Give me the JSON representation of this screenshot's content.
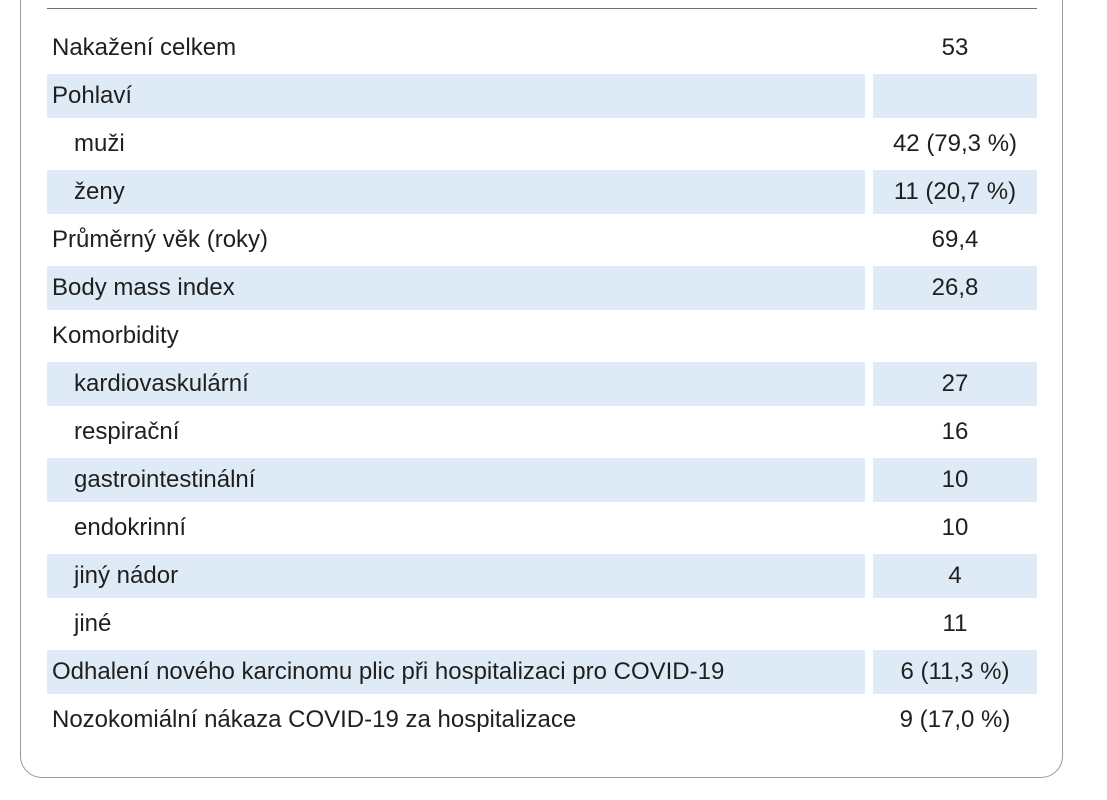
{
  "table": {
    "rows": [
      {
        "label": "Nakažení celkem",
        "value": "53",
        "indent": false,
        "shaded": false
      },
      {
        "label": "Pohlaví",
        "value": "",
        "indent": false,
        "shaded": true
      },
      {
        "label": "muži",
        "value": "42 (79,3 %)",
        "indent": true,
        "shaded": false
      },
      {
        "label": "ženy",
        "value": "11 (20,7 %)",
        "indent": true,
        "shaded": true
      },
      {
        "label": "Průměrný věk (roky)",
        "value": "69,4",
        "indent": false,
        "shaded": false
      },
      {
        "label": "Body mass index",
        "value": "26,8",
        "indent": false,
        "shaded": true
      },
      {
        "label": "Komorbidity",
        "value": "",
        "indent": false,
        "shaded": false
      },
      {
        "label": "kardiovaskulární",
        "value": "27",
        "indent": true,
        "shaded": true
      },
      {
        "label": "respirační",
        "value": "16",
        "indent": true,
        "shaded": false
      },
      {
        "label": "gastrointestinální",
        "value": "10",
        "indent": true,
        "shaded": true
      },
      {
        "label": "endokrinní",
        "value": "10",
        "indent": true,
        "shaded": false
      },
      {
        "label": "jiný nádor",
        "value": "4",
        "indent": true,
        "shaded": true
      },
      {
        "label": "jiné",
        "value": "11",
        "indent": true,
        "shaded": false
      },
      {
        "label": "Odhalení nového karcinomu plic při hospitalizaci pro COVID-19",
        "value": "6 (11,3 %)",
        "indent": false,
        "shaded": true
      },
      {
        "label": "Nozokomiální nákaza COVID-19 za hospitalizace",
        "value": "9 (17,0 %)",
        "indent": false,
        "shaded": false
      }
    ]
  }
}
